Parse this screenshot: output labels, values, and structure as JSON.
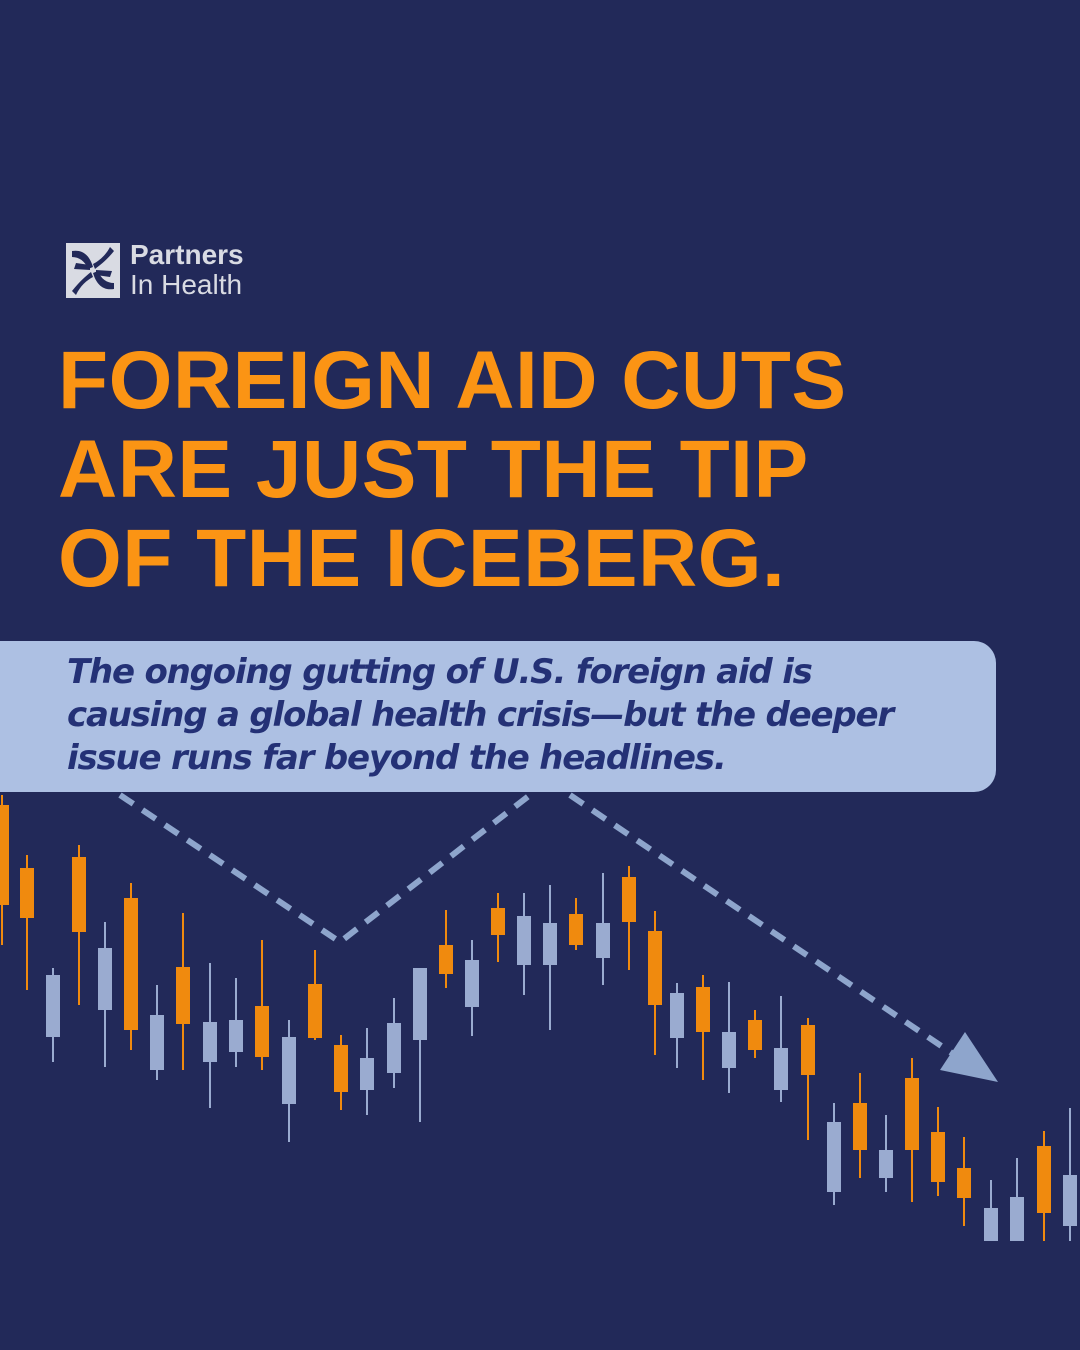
{
  "logo": {
    "line1": "Partners",
    "line2": "In Health"
  },
  "headline": {
    "lines": [
      "FOREIGN AID CUTS",
      "ARE JUST THE TIP",
      "OF THE ICEBERG."
    ]
  },
  "banner": {
    "text": "The ongoing gutting of U.S. foreign aid is causing a global health crisis—but the deeper issue runs far beyond the headlines."
  },
  "colors": {
    "background": "#222959",
    "accent_orange": "#fb9414",
    "banner": "#adc0e3",
    "candle_up": "#f08a0e",
    "candle_down": "#9aabd0",
    "dashed_arrow": "#8ea5cc"
  },
  "decoration": {
    "type": "candlestick",
    "trend_arrow": "down-up-down dashed arrow"
  }
}
